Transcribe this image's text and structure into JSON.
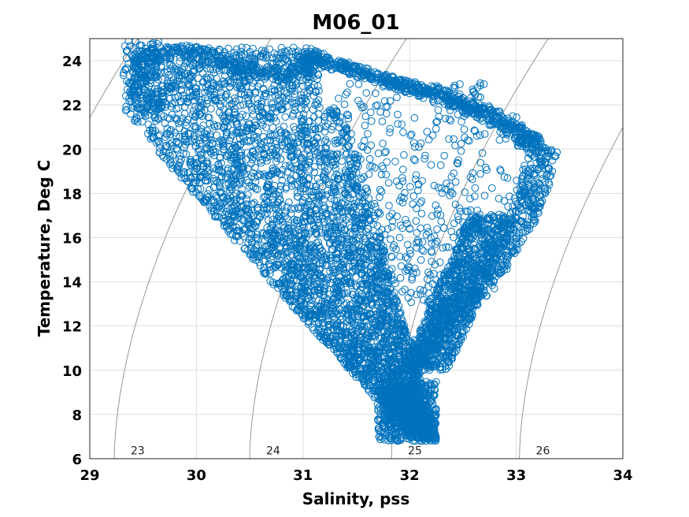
{
  "chart_data": {
    "type": "scatter",
    "title": "M06_01",
    "xlabel": "Salinity, pss",
    "ylabel": "Temperature, Deg C",
    "xlim": [
      29,
      34
    ],
    "ylim": [
      6,
      25
    ],
    "xticks": [
      "29",
      "30",
      "31",
      "32",
      "33",
      "34"
    ],
    "yticks": [
      "6",
      "8",
      "10",
      "12",
      "14",
      "16",
      "18",
      "20",
      "22",
      "24"
    ],
    "grid": true,
    "marker": "open-circle",
    "series_color": "#0072bd",
    "contour_color": "#8c8c8c",
    "density_contours": [
      {
        "label": "23",
        "label_s": 29.45,
        "label_t": 6.2
      },
      {
        "label": "24",
        "label_s": 30.72,
        "label_t": 6.2
      },
      {
        "label": "25",
        "label_s": 32.05,
        "label_t": 6.2
      },
      {
        "label": "26",
        "label_s": 33.25,
        "label_t": 6.2
      }
    ],
    "density_extra_lines": 3,
    "points": {
      "left_band_upper": [
        [
          29.3,
          22.0
        ],
        [
          29.5,
          22.8
        ],
        [
          29.6,
          24.7
        ],
        [
          30.0,
          24.5
        ],
        [
          30.5,
          24.0
        ],
        [
          31.0,
          24.5
        ]
      ],
      "left_band_lower": [
        [
          29.3,
          21.9
        ],
        [
          30.2,
          18.5
        ],
        [
          30.6,
          16.0
        ],
        [
          31.0,
          13.5
        ],
        [
          31.5,
          10.5
        ],
        [
          31.8,
          8.0
        ],
        [
          32.2,
          7.0
        ]
      ],
      "right_loop_outer": [
        [
          31.1,
          24.5
        ],
        [
          31.8,
          23.5
        ],
        [
          32.5,
          22.5
        ],
        [
          33.0,
          21.5
        ],
        [
          33.4,
          20.0
        ],
        [
          33.2,
          17.0
        ],
        [
          32.8,
          14.0
        ],
        [
          32.4,
          12.0
        ],
        [
          32.1,
          10.0
        ]
      ],
      "right_loop_inner": [
        [
          31.2,
          22.0
        ],
        [
          31.5,
          18.5
        ],
        [
          31.7,
          15.0
        ],
        [
          31.9,
          12.0
        ],
        [
          32.0,
          10.0
        ]
      ]
    }
  }
}
